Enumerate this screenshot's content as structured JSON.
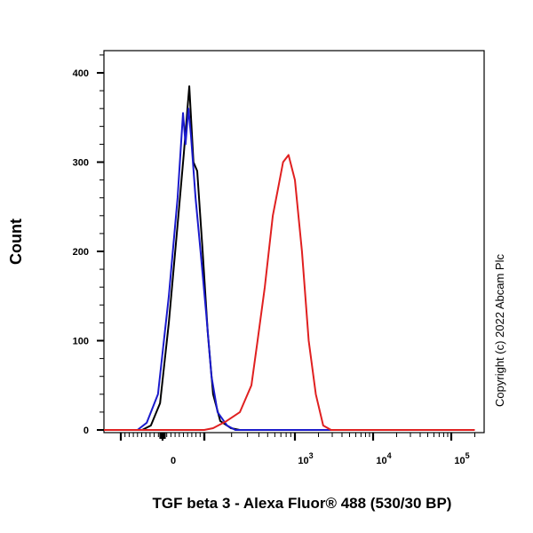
{
  "chart_data": {
    "type": "line",
    "title": "",
    "xlabel": "TGF beta 3 - Alexa Fluor® 488 (530/30 BP)",
    "ylabel": "Count",
    "x_scale": "biexponential",
    "ylim": [
      0,
      420
    ],
    "y_ticks": [
      0,
      100,
      200,
      300,
      400
    ],
    "x_ticks": [
      {
        "value": 0,
        "label": "0",
        "exp": ""
      },
      {
        "value": 1000,
        "label": "10",
        "exp": "3"
      },
      {
        "value": 10000,
        "label": "10",
        "exp": "4"
      },
      {
        "value": 100000,
        "label": "10",
        "exp": "5"
      }
    ],
    "grid": false,
    "annotation": "Copyright (c) 2022 Abcam Plc",
    "series": [
      {
        "color": "#000000",
        "points": [
          [
            -49,
            0
          ],
          [
            -28,
            5
          ],
          [
            -6,
            30
          ],
          [
            15,
            120
          ],
          [
            36,
            230
          ],
          [
            51,
            310
          ],
          [
            64,
            385
          ],
          [
            74,
            300
          ],
          [
            83,
            290
          ],
          [
            96,
            200
          ],
          [
            109,
            110
          ],
          [
            125,
            40
          ],
          [
            150,
            10
          ],
          [
            197,
            2
          ],
          [
            246,
            0
          ],
          [
            200000,
            0
          ]
        ]
      },
      {
        "color": "#1a1acc",
        "points": [
          [
            -60,
            0
          ],
          [
            -38,
            8
          ],
          [
            -11,
            40
          ],
          [
            15,
            150
          ],
          [
            36,
            260
          ],
          [
            49,
            355
          ],
          [
            55,
            320
          ],
          [
            62,
            360
          ],
          [
            68,
            330
          ],
          [
            79,
            260
          ],
          [
            91,
            200
          ],
          [
            105,
            130
          ],
          [
            120,
            60
          ],
          [
            140,
            20
          ],
          [
            178,
            5
          ],
          [
            220,
            0
          ],
          [
            200000,
            0
          ]
        ]
      },
      {
        "color": "#e02020",
        "points": [
          [
            -300,
            0
          ],
          [
            100,
            0
          ],
          [
            125,
            2
          ],
          [
            176,
            10
          ],
          [
            247,
            20
          ],
          [
            331,
            50
          ],
          [
            387,
            100
          ],
          [
            465,
            160
          ],
          [
            570,
            240
          ],
          [
            650,
            270
          ],
          [
            740,
            300
          ],
          [
            850,
            308
          ],
          [
            1000,
            280
          ],
          [
            1230,
            200
          ],
          [
            1500,
            100
          ],
          [
            1850,
            40
          ],
          [
            2300,
            5
          ],
          [
            2900,
            0
          ],
          [
            200000,
            0
          ]
        ]
      }
    ]
  }
}
